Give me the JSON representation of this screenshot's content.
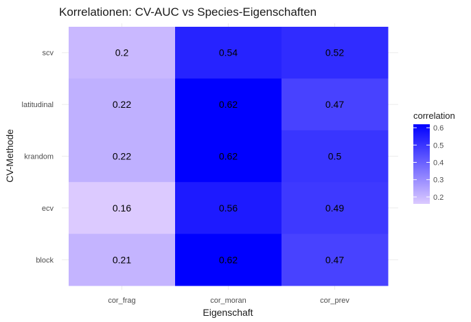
{
  "chart_data": {
    "type": "heatmap",
    "title": "Korrelationen: CV-AUC vs Species-Eigenschaften",
    "xlabel": "Eigenschaft",
    "ylabel": "CV-Methode",
    "x_categories": [
      "cor_frag",
      "cor_moran",
      "cor_prev"
    ],
    "y_categories": [
      "scv",
      "latitudinal",
      "krandom",
      "ecv",
      "block"
    ],
    "values": [
      [
        0.2,
        0.54,
        0.52
      ],
      [
        0.22,
        0.62,
        0.47
      ],
      [
        0.22,
        0.62,
        0.5
      ],
      [
        0.16,
        0.56,
        0.49
      ],
      [
        0.21,
        0.62,
        0.47
      ]
    ],
    "labels": [
      [
        "0.2",
        "0.54",
        "0.52"
      ],
      [
        "0.22",
        "0.62",
        "0.47"
      ],
      [
        "0.22",
        "0.62",
        "0.5"
      ],
      [
        "0.16",
        "0.56",
        "0.49"
      ],
      [
        "0.21",
        "0.62",
        "0.47"
      ]
    ],
    "legend": {
      "title": "correlation",
      "ticks": [
        0.6,
        0.5,
        0.4,
        0.3,
        0.2
      ],
      "tick_labels": [
        "0.6",
        "0.5",
        "0.4",
        "0.3",
        "0.2"
      ],
      "range": [
        0.16,
        0.62
      ],
      "placement": "right"
    },
    "colors": {
      "low": "#dccaff",
      "high": "#0000ff"
    },
    "grid": true
  }
}
